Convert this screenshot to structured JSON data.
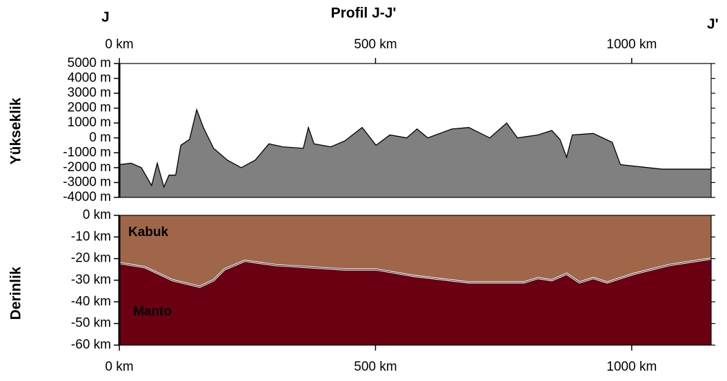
{
  "chart_data": [
    {
      "type": "area",
      "title": "Profil J-J'",
      "ylabel": "Yükseklik",
      "start_label": "J",
      "end_label": "J'",
      "color": "#808080",
      "x": [
        0,
        23,
        43,
        63,
        74,
        87,
        97,
        110,
        120,
        137,
        151,
        164,
        184,
        211,
        238,
        265,
        292,
        319,
        359,
        369,
        380,
        413,
        440,
        474,
        501,
        528,
        561,
        581,
        602,
        649,
        682,
        723,
        756,
        777,
        817,
        844,
        860,
        873,
        884,
        925,
        962,
        978,
        1059,
        1155
      ],
      "values": [
        -1800,
        -1700,
        -2000,
        -3200,
        -1700,
        -3300,
        -2500,
        -2500,
        -500,
        -100,
        1900,
        700,
        -700,
        -1500,
        -2000,
        -1500,
        -400,
        -600,
        -700,
        700,
        -400,
        -600,
        -200,
        700,
        -500,
        200,
        0,
        600,
        0,
        600,
        700,
        0,
        1000,
        0,
        200,
        500,
        -100,
        -1300,
        200,
        300,
        -300,
        -1800,
        -2100,
        -2100
      ],
      "xlim": [
        0,
        1155
      ],
      "xticks": [
        {
          "value": 0,
          "label": "0 km"
        },
        {
          "value": 500,
          "label": "500 km"
        },
        {
          "value": 1000,
          "label": "1000 km"
        }
      ],
      "ylim": [
        -4000,
        5000
      ],
      "yticks": [
        {
          "value": 5000,
          "label": "5000 m"
        },
        {
          "value": 4000,
          "label": "4000 m"
        },
        {
          "value": 3000,
          "label": "3000 m"
        },
        {
          "value": 2000,
          "label": "2000 m"
        },
        {
          "value": 1000,
          "label": "1000 m"
        },
        {
          "value": 0,
          "label": "0 m"
        },
        {
          "value": -1000,
          "label": "-1000 m"
        },
        {
          "value": -2000,
          "label": "-2000 m"
        },
        {
          "value": -3000,
          "label": "-3000 m"
        },
        {
          "value": -4000,
          "label": "-4000 m"
        }
      ]
    },
    {
      "type": "layers",
      "ylabel": "Derinlik",
      "x": [
        0,
        50,
        104,
        157,
        184,
        205,
        245,
        305,
        440,
        501,
        575,
        682,
        790,
        817,
        844,
        873,
        898,
        925,
        952,
        1005,
        1073,
        1155
      ],
      "values": [
        -22,
        -24,
        -30,
        -33,
        -30,
        -25,
        -21,
        -23,
        -25,
        -25,
        -28,
        -31,
        -31,
        -29,
        -30,
        -27,
        -31,
        -29,
        -31,
        -27,
        -23,
        -20
      ],
      "series": [
        {
          "name": "Kabuk",
          "color": "#a0664a"
        },
        {
          "name": "Manto",
          "color": "#6b0012"
        }
      ],
      "xlim": [
        0,
        1155
      ],
      "xticks": [
        {
          "value": 0,
          "label": "0 km"
        },
        {
          "value": 500,
          "label": "500 km"
        },
        {
          "value": 1000,
          "label": "1000 km"
        }
      ],
      "ylim": [
        -60,
        0
      ],
      "yticks": [
        {
          "value": 0,
          "label": "0 km"
        },
        {
          "value": -10,
          "label": "-10 km"
        },
        {
          "value": -20,
          "label": "-20 km"
        },
        {
          "value": -30,
          "label": "-30 km"
        },
        {
          "value": -40,
          "label": "-40 km"
        },
        {
          "value": -50,
          "label": "-50 km"
        },
        {
          "value": -60,
          "label": "-60 km"
        }
      ]
    }
  ]
}
